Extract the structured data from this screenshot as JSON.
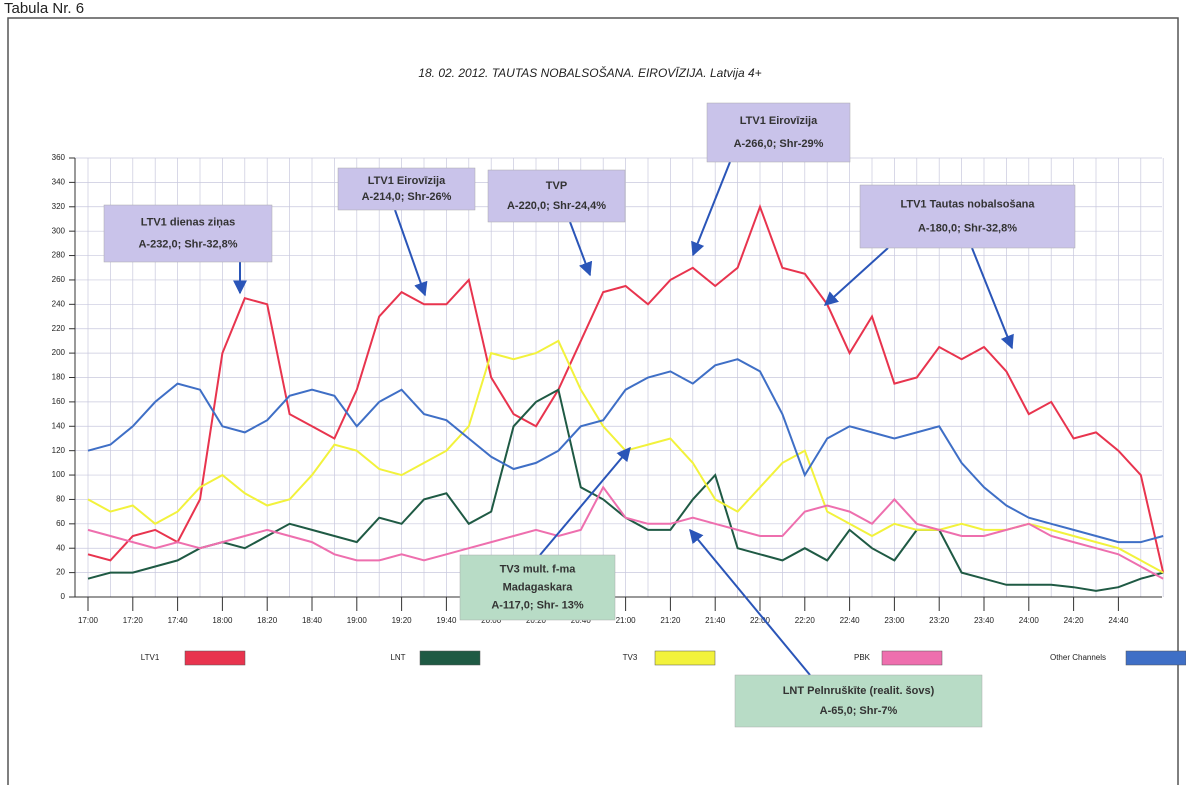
{
  "header": "Tabula Nr. 6",
  "chart_data": {
    "type": "line",
    "title": "18. 02. 2012. TAUTAS NOBALSOŠANA. EIROVĪZIJA. Latvija 4+",
    "categories": [
      "17:00",
      null,
      "17:20",
      null,
      "17:40",
      null,
      "18:00",
      null,
      "18:20",
      null,
      "18:40",
      null,
      "19:00",
      null,
      "19:20",
      null,
      "19:40",
      null,
      "20:00",
      null,
      "20:20",
      null,
      "20:40",
      null,
      "21:00",
      null,
      "21:20",
      null,
      "21:40",
      null,
      "22:00",
      null,
      "22:20",
      null,
      "22:40",
      null,
      "23:00",
      null,
      "23:20",
      null,
      "23:40",
      null,
      "24:00",
      null,
      "24:20",
      null,
      "24:40",
      null,
      null
    ],
    "ylim": [
      0,
      360
    ],
    "yticks": [
      0,
      20,
      40,
      60,
      80,
      100,
      120,
      140,
      160,
      180,
      200,
      220,
      240,
      260,
      280,
      300,
      320,
      340,
      360
    ],
    "grid": true,
    "series": [
      {
        "name": "LTV1",
        "color": "#e8344e",
        "values": [
          35,
          30,
          50,
          55,
          45,
          80,
          200,
          245,
          240,
          150,
          140,
          130,
          170,
          230,
          250,
          240,
          240,
          260,
          180,
          150,
          140,
          170,
          210,
          250,
          255,
          240,
          260,
          270,
          255,
          270,
          320,
          270,
          265,
          240,
          200,
          230,
          175,
          180,
          205,
          195,
          205,
          185,
          150,
          160,
          130,
          135,
          120,
          100,
          20
        ]
      },
      {
        "name": "LNT",
        "color": "#1f5a44",
        "values": [
          15,
          20,
          20,
          25,
          30,
          40,
          45,
          40,
          50,
          60,
          55,
          50,
          45,
          65,
          60,
          80,
          85,
          60,
          70,
          140,
          160,
          170,
          90,
          80,
          65,
          55,
          55,
          80,
          100,
          40,
          35,
          30,
          40,
          30,
          55,
          40,
          30,
          55,
          55,
          20,
          15,
          10,
          10,
          10,
          8,
          5,
          8,
          15,
          20
        ]
      },
      {
        "name": "TV3",
        "color": "#f2f23c",
        "values": [
          80,
          70,
          75,
          60,
          70,
          90,
          100,
          85,
          75,
          80,
          100,
          125,
          120,
          105,
          100,
          110,
          120,
          140,
          200,
          195,
          200,
          210,
          170,
          140,
          120,
          125,
          130,
          110,
          80,
          70,
          90,
          110,
          120,
          70,
          60,
          50,
          60,
          55,
          55,
          60,
          55,
          55,
          60,
          55,
          50,
          45,
          40,
          30,
          20
        ]
      },
      {
        "name": "PBK",
        "color": "#ee6fae",
        "values": [
          55,
          50,
          45,
          40,
          45,
          40,
          45,
          50,
          55,
          50,
          45,
          35,
          30,
          30,
          35,
          30,
          35,
          40,
          45,
          50,
          55,
          50,
          55,
          90,
          65,
          60,
          60,
          65,
          60,
          55,
          50,
          50,
          70,
          75,
          70,
          60,
          80,
          60,
          55,
          50,
          50,
          55,
          60,
          50,
          45,
          40,
          35,
          25,
          15
        ]
      },
      {
        "name": "Other Channels",
        "color": "#3f6fc6",
        "values": [
          120,
          125,
          140,
          160,
          175,
          170,
          140,
          135,
          145,
          165,
          170,
          165,
          140,
          160,
          170,
          150,
          145,
          130,
          115,
          105,
          110,
          120,
          140,
          145,
          170,
          180,
          185,
          175,
          190,
          195,
          185,
          150,
          100,
          130,
          140,
          135,
          130,
          135,
          140,
          110,
          90,
          75,
          65,
          60,
          55,
          50,
          45,
          45,
          50
        ]
      }
    ],
    "annotations": [
      {
        "lines": [
          "LTV1 dienas ziņas",
          "A-232,0; Shr-32,8%"
        ],
        "color": "#c9c3ea"
      },
      {
        "lines": [
          "LTV1 Eirovīzija",
          "A-214,0; Shr-26%"
        ],
        "color": "#c9c3ea"
      },
      {
        "lines": [
          "TVP",
          "A-220,0; Shr-24,4%"
        ],
        "color": "#c9c3ea"
      },
      {
        "lines": [
          "LTV1 Eirovīzija",
          "A-266,0; Shr-29%"
        ],
        "color": "#c9c3ea"
      },
      {
        "lines": [
          "LTV1 Tautas nobalsošana",
          "A-180,0; Shr-32,8%"
        ],
        "color": "#c9c3ea"
      },
      {
        "lines": [
          "TV3 mult. f-ma",
          "Madagaskara",
          "A-117,0; Shr- 13%"
        ],
        "color": "#b8dcc6"
      },
      {
        "lines": [
          "LNT Pelnruškīte (realit. šovs)",
          "A-65,0; Shr-7%"
        ],
        "color": "#b8dcc6"
      }
    ]
  }
}
